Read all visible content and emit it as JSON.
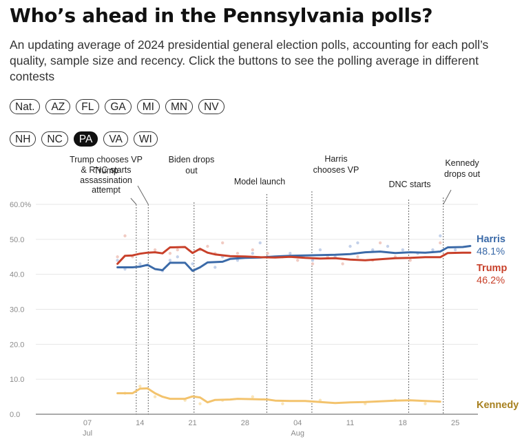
{
  "header": {
    "title": "Who’s ahead in the Pennsylvania polls?",
    "subtitle": "An updating average of 2024 presidential general election polls, accounting for each poll’s quality, sample size and recency. Click the buttons to see the polling average in different contests"
  },
  "buttons": {
    "row1": [
      "Nat.",
      "AZ",
      "FL",
      "GA",
      "MI",
      "MN",
      "NV"
    ],
    "row2": [
      "NH",
      "NC",
      "PA",
      "VA",
      "WI"
    ],
    "active": "PA"
  },
  "colors": {
    "harris": "#3b6aa8",
    "trump": "#c8402a",
    "kennedy": "#f3c36d",
    "kennedy_label": "#a7801f",
    "harris_dots": "#b9c9e6",
    "trump_dots": "#eec2b8",
    "kennedy_dots": "#f8e0ae"
  },
  "chart_data": {
    "type": "line",
    "x_axis": {
      "start_day": 0,
      "end_day": 57,
      "note_day0": "Jul 01",
      "ticks": [
        {
          "day": 6,
          "label": "07",
          "sub": "Jul"
        },
        {
          "day": 13,
          "label": "14",
          "sub": ""
        },
        {
          "day": 20,
          "label": "21",
          "sub": ""
        },
        {
          "day": 27,
          "label": "28",
          "sub": ""
        },
        {
          "day": 34,
          "label": "04",
          "sub": "Aug"
        },
        {
          "day": 41,
          "label": "11",
          "sub": ""
        },
        {
          "day": 48,
          "label": "18",
          "sub": ""
        },
        {
          "day": 55,
          "label": "25",
          "sub": ""
        }
      ]
    },
    "y_axis": {
      "ylim": [
        0,
        60
      ],
      "ticks": [
        {
          "v": 0,
          "label": "0.0"
        },
        {
          "v": 10,
          "label": "10.0"
        },
        {
          "v": 20,
          "label": "20.0"
        },
        {
          "v": 30,
          "label": "30.0"
        },
        {
          "v": 40,
          "label": "40.0"
        },
        {
          "v": 50,
          "label": "50.0"
        },
        {
          "v": 60,
          "label": "60.0%"
        }
      ]
    },
    "grid": true,
    "series": [
      {
        "name": "Harris",
        "key": "harris",
        "end_label": "48.1%",
        "points": [
          [
            10,
            42
          ],
          [
            12,
            42
          ],
          [
            13,
            42.2
          ],
          [
            14,
            42.7
          ],
          [
            15,
            41.5
          ],
          [
            16,
            41.2
          ],
          [
            17,
            43.3
          ],
          [
            19,
            43.3
          ],
          [
            20,
            41
          ],
          [
            21,
            42
          ],
          [
            22,
            43.4
          ],
          [
            24,
            43.6
          ],
          [
            25,
            44.4
          ],
          [
            27,
            44.7
          ],
          [
            29,
            44.8
          ],
          [
            31,
            45.1
          ],
          [
            33,
            45.3
          ],
          [
            35,
            45.4
          ],
          [
            37,
            45.5
          ],
          [
            39,
            45.6
          ],
          [
            41,
            45.8
          ],
          [
            43,
            46.3
          ],
          [
            45,
            46.5
          ],
          [
            47,
            46.1
          ],
          [
            49,
            46.3
          ],
          [
            51,
            46.2
          ],
          [
            53,
            46.5
          ],
          [
            54,
            47.7
          ],
          [
            56,
            47.8
          ],
          [
            57,
            48.1
          ]
        ]
      },
      {
        "name": "Trump",
        "key": "trump",
        "end_label": "46.2%",
        "points": [
          [
            10,
            43
          ],
          [
            11,
            45.3
          ],
          [
            12,
            45.4
          ],
          [
            13,
            45.9
          ],
          [
            14,
            46.2
          ],
          [
            15,
            46.3
          ],
          [
            16,
            46
          ],
          [
            17,
            47.7
          ],
          [
            19,
            47.8
          ],
          [
            20,
            46.1
          ],
          [
            21,
            47.3
          ],
          [
            22,
            46.2
          ],
          [
            23,
            45.7
          ],
          [
            25,
            45.2
          ],
          [
            27,
            45.1
          ],
          [
            29,
            44.9
          ],
          [
            31,
            44.8
          ],
          [
            33,
            45
          ],
          [
            35,
            44.7
          ],
          [
            37,
            44.5
          ],
          [
            39,
            44.6
          ],
          [
            41,
            44.2
          ],
          [
            43,
            44
          ],
          [
            45,
            44.3
          ],
          [
            47,
            44.6
          ],
          [
            49,
            44.7
          ],
          [
            51,
            44.9
          ],
          [
            53,
            44.9
          ],
          [
            54,
            46.1
          ],
          [
            56,
            46.2
          ],
          [
            57,
            46.2
          ]
        ]
      },
      {
        "name": "Kennedy",
        "key": "kennedy",
        "end_label": "",
        "points": [
          [
            10,
            6
          ],
          [
            12,
            6
          ],
          [
            13,
            7.3
          ],
          [
            14,
            7.4
          ],
          [
            15,
            6
          ],
          [
            16,
            5
          ],
          [
            17,
            4.4
          ],
          [
            19,
            4.4
          ],
          [
            20,
            5.1
          ],
          [
            21,
            4.8
          ],
          [
            22,
            3.4
          ],
          [
            23,
            4.1
          ],
          [
            25,
            4.2
          ],
          [
            26,
            4.4
          ],
          [
            28,
            4.3
          ],
          [
            30,
            4.2
          ],
          [
            31,
            3.9
          ],
          [
            33,
            3.8
          ],
          [
            35,
            3.8
          ],
          [
            37,
            3.5
          ],
          [
            39,
            3.2
          ],
          [
            41,
            3.4
          ],
          [
            43,
            3.5
          ],
          [
            45,
            3.7
          ],
          [
            47,
            3.9
          ],
          [
            49,
            4
          ],
          [
            51,
            3.8
          ],
          [
            53,
            3.6
          ]
        ]
      }
    ],
    "poll_dots": [
      {
        "key": "harris_dots",
        "points": [
          [
            10,
            44
          ],
          [
            11,
            41.5
          ],
          [
            13,
            43
          ],
          [
            16,
            41
          ],
          [
            17,
            44
          ],
          [
            18,
            45
          ],
          [
            20,
            43
          ],
          [
            23,
            42
          ],
          [
            24,
            45
          ],
          [
            26,
            44
          ],
          [
            28,
            46
          ],
          [
            29,
            49
          ],
          [
            30,
            45
          ],
          [
            33,
            46
          ],
          [
            36,
            44
          ],
          [
            37,
            47
          ],
          [
            39,
            45
          ],
          [
            41,
            48
          ],
          [
            42,
            49
          ],
          [
            44,
            47
          ],
          [
            46,
            48
          ],
          [
            48,
            47
          ],
          [
            50,
            46
          ],
          [
            52,
            47
          ],
          [
            53,
            51
          ],
          [
            55,
            47
          ]
        ]
      },
      {
        "key": "trump_dots",
        "points": [
          [
            10,
            45
          ],
          [
            11,
            51
          ],
          [
            12,
            45
          ],
          [
            15,
            47
          ],
          [
            17,
            46
          ],
          [
            18,
            47
          ],
          [
            21,
            47
          ],
          [
            22,
            48
          ],
          [
            23,
            46
          ],
          [
            24,
            49
          ],
          [
            26,
            46
          ],
          [
            28,
            47
          ],
          [
            30,
            46
          ],
          [
            32,
            45
          ],
          [
            34,
            44
          ],
          [
            36,
            43
          ],
          [
            38,
            45
          ],
          [
            40,
            43
          ],
          [
            42,
            45
          ],
          [
            44,
            44
          ],
          [
            45,
            49
          ],
          [
            47,
            45
          ],
          [
            49,
            44
          ],
          [
            53,
            49
          ]
        ]
      },
      {
        "key": "kennedy_dots",
        "points": [
          [
            11,
            6
          ],
          [
            13,
            8
          ],
          [
            15,
            5
          ],
          [
            19,
            4
          ],
          [
            21,
            3
          ],
          [
            24,
            4
          ],
          [
            28,
            5
          ],
          [
            32,
            3
          ],
          [
            37,
            4
          ],
          [
            43,
            3
          ],
          [
            47,
            4
          ],
          [
            51,
            3
          ]
        ]
      }
    ],
    "annotations": [
      {
        "day": 12.5,
        "lines": [
          "Trump",
          "assassination",
          "attempt"
        ]
      },
      {
        "day": 14.1,
        "lines": [
          "Trump chooses VP",
          "& RNC starts"
        ]
      },
      {
        "day": 20.2,
        "lines": [
          "Biden drops",
          "out"
        ]
      },
      {
        "day": 29.9,
        "lines": [
          "Model launch"
        ]
      },
      {
        "day": 35.9,
        "lines": [
          "Harris",
          "chooses VP"
        ]
      },
      {
        "day": 48.8,
        "lines": [
          "DNC starts"
        ]
      },
      {
        "day": 53.4,
        "lines": [
          "Kennedy",
          "drops out"
        ]
      }
    ],
    "end_labels": [
      {
        "key": "harris",
        "name": "Harris",
        "value": "48.1%"
      },
      {
        "key": "trump",
        "name": "Trump",
        "value": "46.2%"
      },
      {
        "key": "kennedy",
        "name": "Kennedy",
        "value": ""
      }
    ]
  }
}
